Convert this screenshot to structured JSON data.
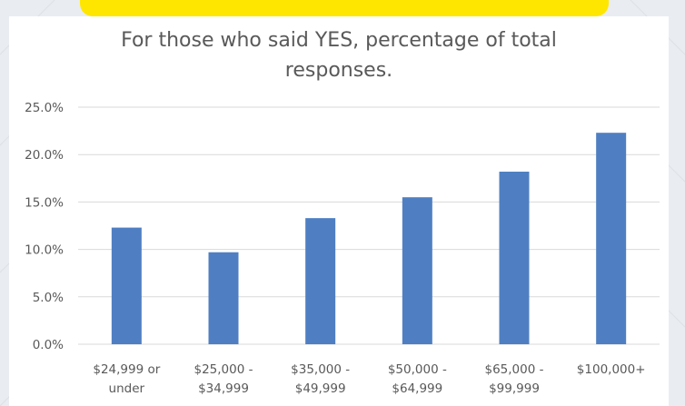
{
  "colors": {
    "accent": "#ffe600",
    "bar": "#4f7fc2",
    "text": "#595959",
    "grid": "#d9d9d9"
  },
  "chart_data": {
    "type": "bar",
    "title_lines": [
      "For those who said YES, percentage of total",
      "responses."
    ],
    "categories": [
      [
        "$24,999 or",
        "under"
      ],
      [
        "$25,000 -",
        "$34,999"
      ],
      [
        "$35,000 -",
        "$49,999"
      ],
      [
        "$50,000 -",
        "$64,999"
      ],
      [
        "$65,000 -",
        "$99,999"
      ],
      [
        "$100,000+"
      ]
    ],
    "values": [
      12.3,
      9.7,
      13.3,
      15.5,
      18.2,
      22.3
    ],
    "yticks": [
      "0.0%",
      "5.0%",
      "10.0%",
      "15.0%",
      "20.0%",
      "25.0%"
    ],
    "ylim": [
      0,
      25
    ],
    "grid": true
  }
}
